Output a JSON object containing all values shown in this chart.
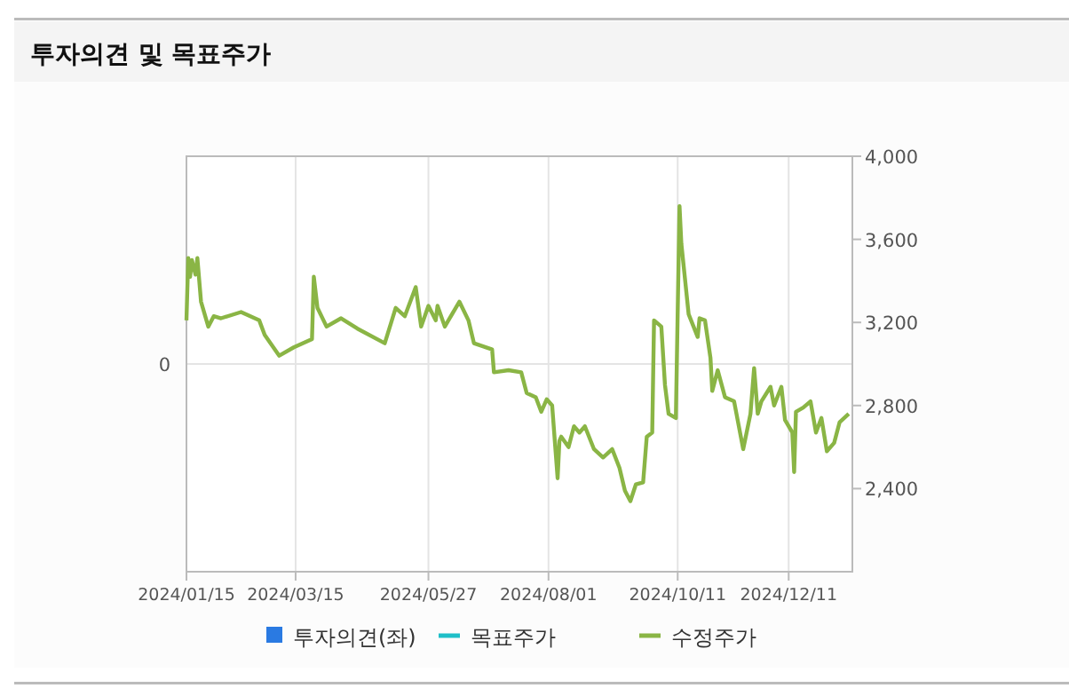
{
  "chart_data": {
    "type": "line",
    "title": "투자의견 및 목표주가",
    "x": [
      "2024-01-15",
      "2024-01-16",
      "2024-01-17",
      "2024-01-18",
      "2024-01-20",
      "2024-01-21",
      "2024-01-23",
      "2024-01-27",
      "2024-01-30",
      "2024-02-03",
      "2024-02-14",
      "2024-02-24",
      "2024-02-27",
      "2024-03-06",
      "2024-03-14",
      "2024-03-24",
      "2024-03-25",
      "2024-03-27",
      "2024-04-01",
      "2024-04-09",
      "2024-04-18",
      "2024-05-03",
      "2024-05-09",
      "2024-05-14",
      "2024-05-20",
      "2024-05-23",
      "2024-05-27",
      "2024-05-31",
      "2024-06-01",
      "2024-06-05",
      "2024-06-13",
      "2024-06-18",
      "2024-06-21",
      "2024-07-01",
      "2024-07-02",
      "2024-07-10",
      "2024-07-17",
      "2024-07-20",
      "2024-07-25",
      "2024-07-28",
      "2024-07-31",
      "2024-08-03",
      "2024-08-06",
      "2024-08-07",
      "2024-08-08",
      "2024-08-12",
      "2024-08-15",
      "2024-08-18",
      "2024-08-21",
      "2024-08-26",
      "2024-08-31",
      "2024-09-05",
      "2024-09-09",
      "2024-09-12",
      "2024-09-15",
      "2024-09-18",
      "2024-09-22",
      "2024-09-24",
      "2024-09-27",
      "2024-09-28",
      "2024-10-02",
      "2024-10-04",
      "2024-10-06",
      "2024-10-10",
      "2024-10-12",
      "2024-10-13",
      "2024-10-15",
      "2024-10-17",
      "2024-10-22",
      "2024-10-23",
      "2024-10-26",
      "2024-10-29",
      "2024-10-30",
      "2024-11-02",
      "2024-11-06",
      "2024-11-11",
      "2024-11-16",
      "2024-11-20",
      "2024-11-22",
      "2024-11-24",
      "2024-11-26",
      "2024-12-01",
      "2024-12-03",
      "2024-12-07",
      "2024-12-09",
      "2024-12-13",
      "2024-12-14",
      "2024-12-15",
      "2024-12-19",
      "2024-12-23",
      "2024-12-26",
      "2024-12-29",
      "2025-01-01",
      "2025-01-05",
      "2025-01-08",
      "2025-01-13"
    ],
    "series": [
      {
        "name": "투자의견(좌)",
        "type": "bar",
        "color": "#2a7ae2",
        "values": [
          null,
          null,
          null,
          null,
          null,
          null,
          null,
          null,
          null,
          null,
          null,
          null,
          null,
          null,
          null,
          null,
          null,
          null,
          null,
          null,
          null,
          null,
          null,
          null,
          null,
          null,
          null,
          null,
          null,
          null,
          null,
          null,
          null,
          null,
          null,
          null,
          null,
          null,
          null,
          null,
          null,
          null,
          null,
          null,
          null,
          null,
          null,
          null,
          null,
          null,
          null,
          null,
          null,
          null,
          null,
          null,
          null,
          null,
          null,
          null,
          null,
          null,
          null,
          null,
          null,
          null,
          null,
          null,
          null,
          null,
          null,
          null,
          null,
          null,
          null,
          null,
          null,
          null,
          null,
          null,
          null,
          null,
          null,
          null,
          null,
          null,
          null,
          null,
          null,
          null,
          null,
          null,
          null,
          null,
          null,
          null
        ]
      },
      {
        "name": "목표주가",
        "type": "line",
        "color": "#1fbfc8",
        "axis": "y2",
        "values": [
          null,
          null,
          null,
          null,
          null,
          null,
          null,
          null,
          null,
          null,
          null,
          null,
          null,
          null,
          null,
          null,
          null,
          null,
          null,
          null,
          null,
          null,
          null,
          null,
          null,
          null,
          null,
          null,
          null,
          null,
          null,
          null,
          null,
          null,
          null,
          null,
          null,
          null,
          null,
          null,
          null,
          null,
          null,
          null,
          null,
          null,
          null,
          null,
          null,
          null,
          null,
          null,
          null,
          null,
          null,
          null,
          null,
          null,
          null,
          null,
          null,
          null,
          null,
          null,
          null,
          null,
          null,
          null,
          null,
          null,
          null,
          null,
          null,
          null,
          null,
          null,
          null,
          null,
          null,
          null,
          null,
          null,
          null,
          null,
          null,
          null,
          null,
          null,
          null,
          null,
          null,
          null,
          null,
          null,
          null,
          null
        ]
      },
      {
        "name": "수정주가",
        "color": "#8ab545",
        "axis": "y2",
        "values": [
          3210,
          3510,
          3420,
          3500,
          3430,
          3510,
          3300,
          3180,
          3230,
          3220,
          3250,
          3210,
          3140,
          3040,
          3080,
          3120,
          3420,
          3270,
          3180,
          3220,
          3170,
          3100,
          3270,
          3230,
          3370,
          3180,
          3280,
          3210,
          3280,
          3180,
          3300,
          3210,
          3100,
          3070,
          2960,
          2970,
          2960,
          2860,
          2840,
          2770,
          2830,
          2800,
          2450,
          2630,
          2650,
          2600,
          2700,
          2670,
          2700,
          2590,
          2550,
          2590,
          2500,
          2390,
          2340,
          2420,
          2430,
          2650,
          2670,
          3210,
          3180,
          2900,
          2760,
          2740,
          3760,
          3580,
          3410,
          3240,
          3130,
          3220,
          3210,
          3030,
          2870,
          2970,
          2840,
          2820,
          2590,
          2760,
          2980,
          2760,
          2820,
          2890,
          2800,
          2890,
          2730,
          2670,
          2480,
          2770,
          2790,
          2820,
          2670,
          2740,
          2580,
          2620,
          2720,
          2760
        ]
      }
    ],
    "xlim": [
      "2024-01-15",
      "2025-01-15"
    ],
    "xticks": [
      {
        "value": "2024-01-15",
        "label": "2024/01/15"
      },
      {
        "value": "2024-03-15",
        "label": "2024/03/15"
      },
      {
        "value": "2024-05-27",
        "label": "2024/05/27"
      },
      {
        "value": "2024-08-01",
        "label": "2024/08/01"
      },
      {
        "value": "2024-10-11",
        "label": "2024/10/11"
      },
      {
        "value": "2024-12-11",
        "label": "2024/12/11"
      }
    ],
    "annotations": [
      "0"
    ],
    "y2lim": [
      2000,
      4000
    ],
    "y2ticks": [
      {
        "value": 2400,
        "label": "2,400"
      },
      {
        "value": 2800,
        "label": "2,800"
      },
      {
        "value": 3200,
        "label": "3,200"
      },
      {
        "value": 3600,
        "label": "3,600"
      },
      {
        "value": 4000,
        "label": "4,000"
      }
    ],
    "grid": true,
    "legend": "bottom"
  }
}
